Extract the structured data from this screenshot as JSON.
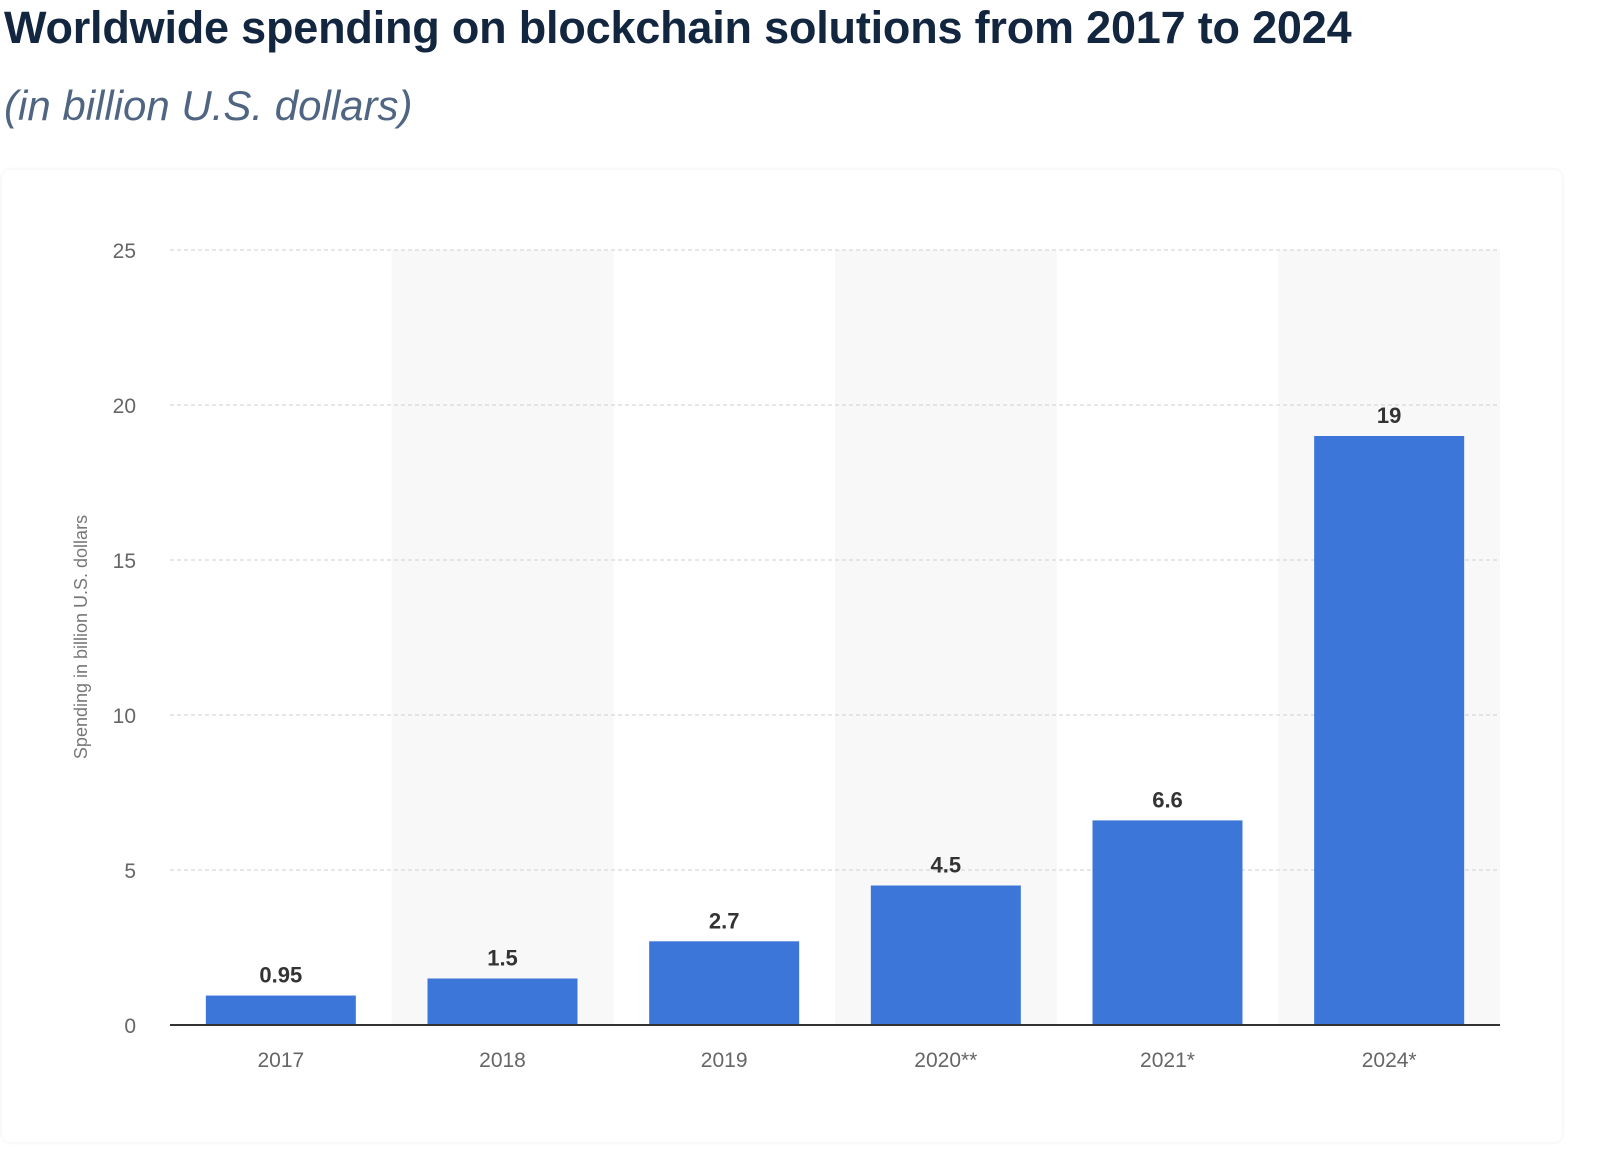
{
  "title": "Worldwide spending on blockchain solutions from 2017 to 2024",
  "subtitle": "(in billion U.S. dollars)",
  "chart_data": {
    "type": "bar",
    "categories": [
      "2017",
      "2018",
      "2019",
      "2020**",
      "2021*",
      "2024*"
    ],
    "values": [
      0.95,
      1.5,
      2.7,
      4.5,
      6.6,
      19
    ],
    "data_labels": [
      "0.95",
      "1.5",
      "2.7",
      "4.5",
      "6.6",
      "19"
    ],
    "xlabel": "",
    "ylabel": "Spending in billion U.S. dollars",
    "ylim": [
      0,
      25
    ],
    "yticks": [
      0,
      5,
      10,
      15,
      20,
      25
    ],
    "grid": "horizontal dashed",
    "bar_color": "#3c76d9"
  }
}
